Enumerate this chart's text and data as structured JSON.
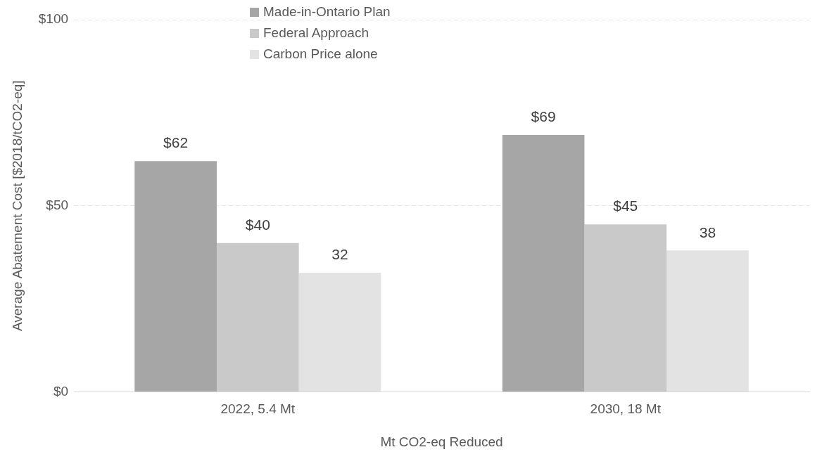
{
  "chart_data": {
    "type": "bar",
    "xlabel": "Mt CO2-eq Reduced",
    "ylabel": "Average Abatement Cost [$2018/tCO2-eq]",
    "categories": [
      "2022, 5.4 Mt",
      "2030, 18 Mt"
    ],
    "series": [
      {
        "name": "Made-in-Ontario Plan",
        "color": "#a6a6a6",
        "values": [
          62,
          69
        ],
        "value_labels": [
          "$62",
          "$69"
        ]
      },
      {
        "name": "Federal Approach",
        "color": "#c9c9c9",
        "values": [
          40,
          45
        ],
        "value_labels": [
          "$40",
          "$45"
        ]
      },
      {
        "name": "Carbon Price alone",
        "color": "#e3e3e3",
        "values": [
          32,
          38
        ],
        "value_labels": [
          "32",
          "38"
        ]
      }
    ],
    "ylim": [
      0,
      100
    ],
    "yticks": [
      {
        "value": 0,
        "label": "$0"
      },
      {
        "value": 50,
        "label": "$50"
      },
      {
        "value": 100,
        "label": "$100"
      }
    ],
    "grid": "y",
    "legend": "top"
  }
}
